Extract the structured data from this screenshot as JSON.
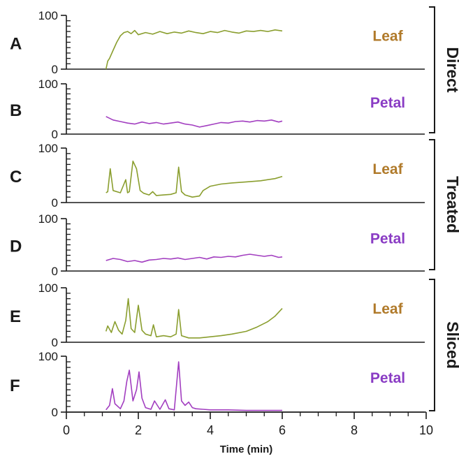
{
  "colors": {
    "leaf_trace": "#8a9e2e",
    "leaf_label": "#b07a2a",
    "petal_trace": "#a23ec0",
    "petal_label": "#8a3cc4",
    "axis": "#1a1a1a"
  },
  "chart_data": {
    "type": "line",
    "xlabel": "Time (min)",
    "xlim": [
      0,
      10
    ],
    "x_ticks": [
      "0",
      "2",
      "4",
      "6",
      "8",
      "10"
    ],
    "ylim": [
      0,
      100
    ],
    "y_ticks": [
      "0",
      "100"
    ],
    "groups": [
      {
        "name": "Direct",
        "panels": [
          "A",
          "B"
        ]
      },
      {
        "name": "Treated",
        "panels": [
          "C",
          "D"
        ]
      },
      {
        "name": "Sliced",
        "panels": [
          "E",
          "F"
        ]
      }
    ],
    "panels": [
      {
        "letter": "A",
        "sample": "Leaf",
        "color_key": "leaf",
        "x": [
          1.1,
          1.15,
          1.2,
          1.3,
          1.4,
          1.5,
          1.6,
          1.7,
          1.8,
          1.9,
          2.0,
          2.2,
          2.4,
          2.6,
          2.8,
          3.0,
          3.2,
          3.4,
          3.6,
          3.8,
          4.0,
          4.2,
          4.4,
          4.6,
          4.8,
          5.0,
          5.2,
          5.4,
          5.6,
          5.8,
          6.0
        ],
        "y": [
          0,
          15,
          20,
          35,
          50,
          62,
          68,
          70,
          66,
          72,
          64,
          68,
          65,
          70,
          66,
          69,
          67,
          71,
          68,
          66,
          70,
          68,
          72,
          69,
          67,
          71,
          70,
          72,
          70,
          73,
          71
        ]
      },
      {
        "letter": "B",
        "sample": "Petal",
        "color_key": "petal",
        "x": [
          1.1,
          1.3,
          1.5,
          1.7,
          1.9,
          2.1,
          2.3,
          2.5,
          2.7,
          2.9,
          3.1,
          3.3,
          3.5,
          3.7,
          3.9,
          4.1,
          4.3,
          4.5,
          4.7,
          4.9,
          5.1,
          5.3,
          5.5,
          5.7,
          5.9,
          6.0
        ],
        "y": [
          35,
          28,
          25,
          22,
          20,
          24,
          21,
          23,
          20,
          22,
          24,
          20,
          18,
          14,
          17,
          20,
          23,
          22,
          25,
          26,
          24,
          27,
          26,
          28,
          24,
          26
        ]
      },
      {
        "letter": "C",
        "sample": "Leaf",
        "color_key": "leaf",
        "x": [
          1.1,
          1.15,
          1.22,
          1.3,
          1.5,
          1.65,
          1.7,
          1.75,
          1.85,
          1.95,
          2.05,
          2.15,
          2.3,
          2.4,
          2.5,
          2.7,
          2.9,
          3.05,
          3.12,
          3.2,
          3.3,
          3.5,
          3.7,
          3.8,
          4.0,
          4.3,
          4.6,
          5.0,
          5.4,
          5.8,
          6.0
        ],
        "y": [
          18,
          20,
          62,
          22,
          18,
          42,
          18,
          20,
          76,
          62,
          22,
          17,
          14,
          20,
          13,
          14,
          15,
          18,
          65,
          20,
          14,
          10,
          12,
          22,
          30,
          34,
          36,
          38,
          40,
          44,
          48
        ]
      },
      {
        "letter": "D",
        "sample": "Petal",
        "color_key": "petal",
        "x": [
          1.1,
          1.3,
          1.5,
          1.7,
          1.9,
          2.1,
          2.3,
          2.5,
          2.7,
          2.9,
          3.1,
          3.3,
          3.5,
          3.7,
          3.9,
          4.1,
          4.3,
          4.5,
          4.7,
          4.9,
          5.1,
          5.3,
          5.5,
          5.7,
          5.9,
          6.0
        ],
        "y": [
          20,
          24,
          22,
          18,
          20,
          17,
          21,
          22,
          24,
          23,
          25,
          22,
          24,
          26,
          23,
          27,
          26,
          28,
          27,
          30,
          32,
          30,
          28,
          30,
          26,
          27
        ]
      },
      {
        "letter": "E",
        "sample": "Leaf",
        "color_key": "leaf",
        "x": [
          1.1,
          1.15,
          1.25,
          1.35,
          1.45,
          1.55,
          1.65,
          1.72,
          1.8,
          1.9,
          2.0,
          2.1,
          2.2,
          2.35,
          2.42,
          2.5,
          2.7,
          2.9,
          3.05,
          3.12,
          3.2,
          3.4,
          3.7,
          4.0,
          4.3,
          4.6,
          5.0,
          5.3,
          5.6,
          5.8,
          6.0
        ],
        "y": [
          20,
          30,
          18,
          38,
          22,
          15,
          40,
          80,
          25,
          18,
          68,
          22,
          15,
          12,
          32,
          10,
          12,
          10,
          15,
          60,
          12,
          8,
          8,
          10,
          12,
          15,
          20,
          28,
          38,
          48,
          62
        ]
      },
      {
        "letter": "F",
        "sample": "Petal",
        "color_key": "petal",
        "x": [
          1.1,
          1.2,
          1.28,
          1.35,
          1.5,
          1.6,
          1.68,
          1.75,
          1.85,
          1.95,
          2.02,
          2.1,
          2.2,
          2.35,
          2.45,
          2.6,
          2.75,
          2.85,
          3.0,
          3.12,
          3.2,
          3.3,
          3.4,
          3.5,
          3.6,
          3.8,
          4.0,
          4.5,
          5.0,
          5.5,
          6.0
        ],
        "y": [
          4,
          12,
          42,
          15,
          6,
          20,
          55,
          75,
          20,
          40,
          72,
          25,
          8,
          5,
          20,
          5,
          22,
          6,
          4,
          90,
          20,
          12,
          18,
          8,
          6,
          5,
          4,
          4,
          3,
          3,
          3
        ]
      }
    ]
  }
}
